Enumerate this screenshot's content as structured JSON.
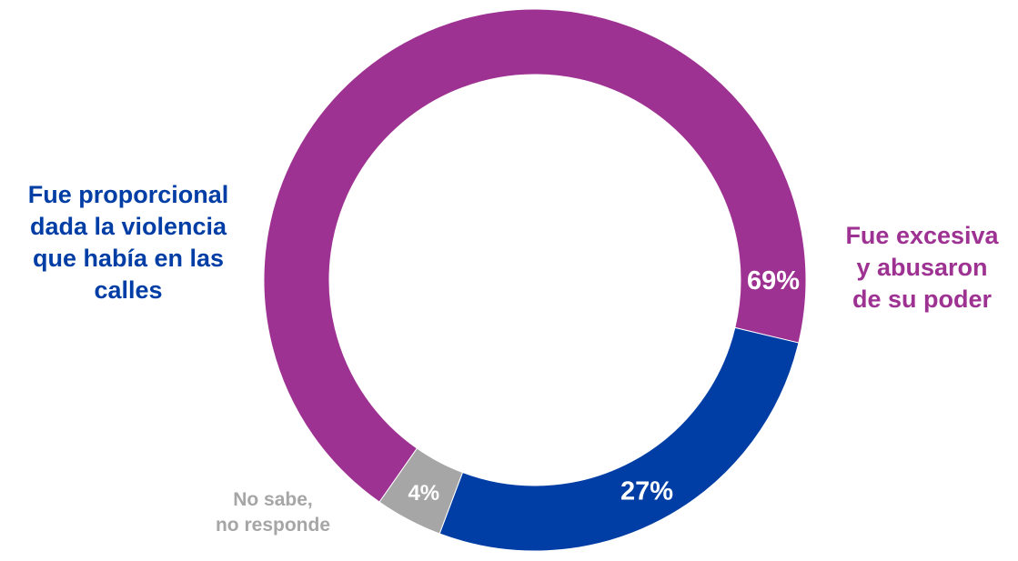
{
  "chart_data": {
    "type": "pie",
    "donut": true,
    "slices": [
      {
        "label_lines": [
          "Fue excesiva",
          "y abusaron",
          "de su poder"
        ],
        "value": 69,
        "display": "69%",
        "color": "#9e3292"
      },
      {
        "label_lines": [
          "Fue proporcional",
          "dada la violencia",
          "que había en las",
          "calles"
        ],
        "value": 27,
        "display": "27%",
        "color": "#003da5"
      },
      {
        "label_lines": [
          "No sabe,",
          "no responde"
        ],
        "value": 4,
        "display": "4%",
        "color": "#a6a6a6"
      }
    ]
  }
}
